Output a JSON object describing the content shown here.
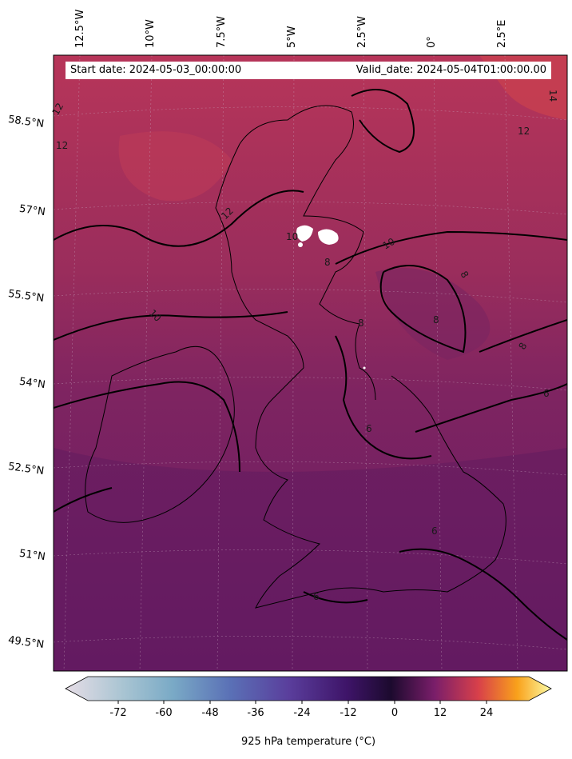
{
  "header": {
    "start_date": "Start date: 2024-05-03_00:00:00",
    "valid_date": "Valid_date: 2024-05-04T01:00:00.00"
  },
  "longitude_labels": [
    "12.5°W",
    "10°W",
    "7.5°W",
    "5°W",
    "2.5°W",
    "0°",
    "2.5°E"
  ],
  "latitude_labels": [
    "58.5°N",
    "57°N",
    "55.5°N",
    "54°N",
    "52.5°N",
    "51°N",
    "49.5°N"
  ],
  "contour_labels": [
    "12",
    "12",
    "12",
    "12",
    "10",
    "10",
    "10",
    "8",
    "8",
    "8",
    "8",
    "8",
    "6",
    "6",
    "6",
    "6",
    "14"
  ],
  "colorbar": {
    "title": "925 hPa temperature (°C)",
    "ticks": [
      "-72",
      "-60",
      "-48",
      "-36",
      "-24",
      "-12",
      "0",
      "12",
      "24"
    ],
    "colors": [
      "#e4dce6",
      "#8fbccb",
      "#5a6fb8",
      "#5a3c9a",
      "#3a1260",
      "#1a0a30",
      "#8a2868",
      "#e05030",
      "#f8b020",
      "#fcfca0"
    ]
  },
  "field_colors": {
    "north": "#b03058",
    "middle": "#8a2a60",
    "south": "#6a1c62",
    "land_outline": "#000000",
    "missing": "#ffffff"
  }
}
